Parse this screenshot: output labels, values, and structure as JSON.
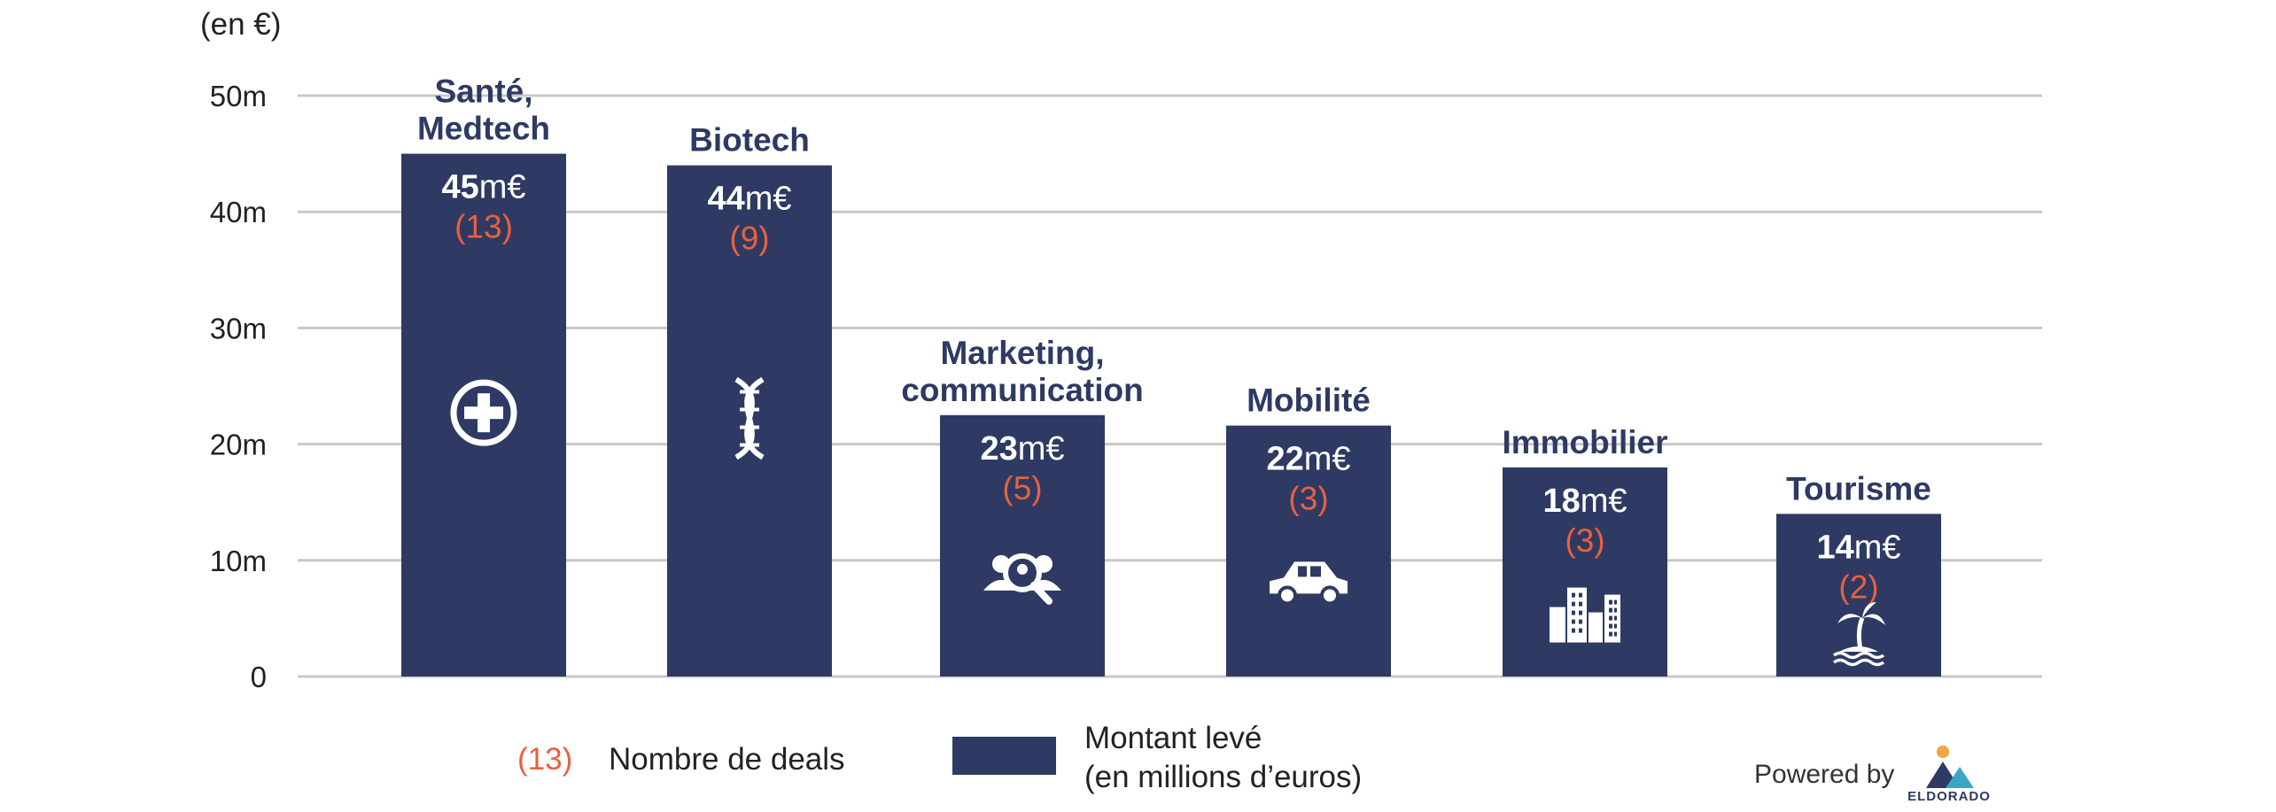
{
  "unit_label": "(en €)",
  "chart_data": {
    "type": "bar",
    "title": "",
    "xlabel": "",
    "ylabel": "(en €)",
    "ylim": [
      0,
      50
    ],
    "yticks": [
      {
        "value": 0,
        "label": "0"
      },
      {
        "value": 10,
        "label": "10m"
      },
      {
        "value": 20,
        "label": "20m"
      },
      {
        "value": 30,
        "label": "30m"
      },
      {
        "value": 40,
        "label": "40m"
      },
      {
        "value": 50,
        "label": "50m"
      }
    ],
    "grid": true,
    "bar_color": "#2e3a63",
    "deals_color": "#e8613c",
    "categories": [
      {
        "label_lines": [
          "Santé,",
          "Medtech"
        ],
        "value": 45,
        "value_num": "45",
        "value_unit": "m€",
        "deals_label": "(13)",
        "deals": 13,
        "icon": "medical-cross-icon"
      },
      {
        "label_lines": [
          "Biotech"
        ],
        "value": 44,
        "value_num": "44",
        "value_unit": "m€",
        "deals_label": "(9)",
        "deals": 9,
        "icon": "dna-icon"
      },
      {
        "label_lines": [
          "Marketing,",
          "communication"
        ],
        "value": 22.5,
        "value_num": "23",
        "value_unit": "m€",
        "deals_label": "(5)",
        "deals": 5,
        "icon": "people-search-icon"
      },
      {
        "label_lines": [
          "Mobilité"
        ],
        "value": 21.6,
        "value_num": "22",
        "value_unit": "m€",
        "deals_label": "(3)",
        "deals": 3,
        "icon": "car-icon"
      },
      {
        "label_lines": [
          "Immobilier"
        ],
        "value": 18,
        "value_num": "18",
        "value_unit": "m€",
        "deals_label": "(3)",
        "deals": 3,
        "icon": "buildings-icon"
      },
      {
        "label_lines": [
          "Tourisme"
        ],
        "value": 14,
        "value_num": "14",
        "value_unit": "m€",
        "deals_label": "(2)",
        "deals": 2,
        "icon": "palm-island-icon"
      }
    ]
  },
  "legend": {
    "deals_sample": "(13)",
    "deals_text": "Nombre de deals",
    "amount_line1": "Montant levé",
    "amount_line2": "(en millions d’euros)"
  },
  "footer": {
    "powered_by": "Powered by",
    "logo_text": "ELDORADO"
  }
}
